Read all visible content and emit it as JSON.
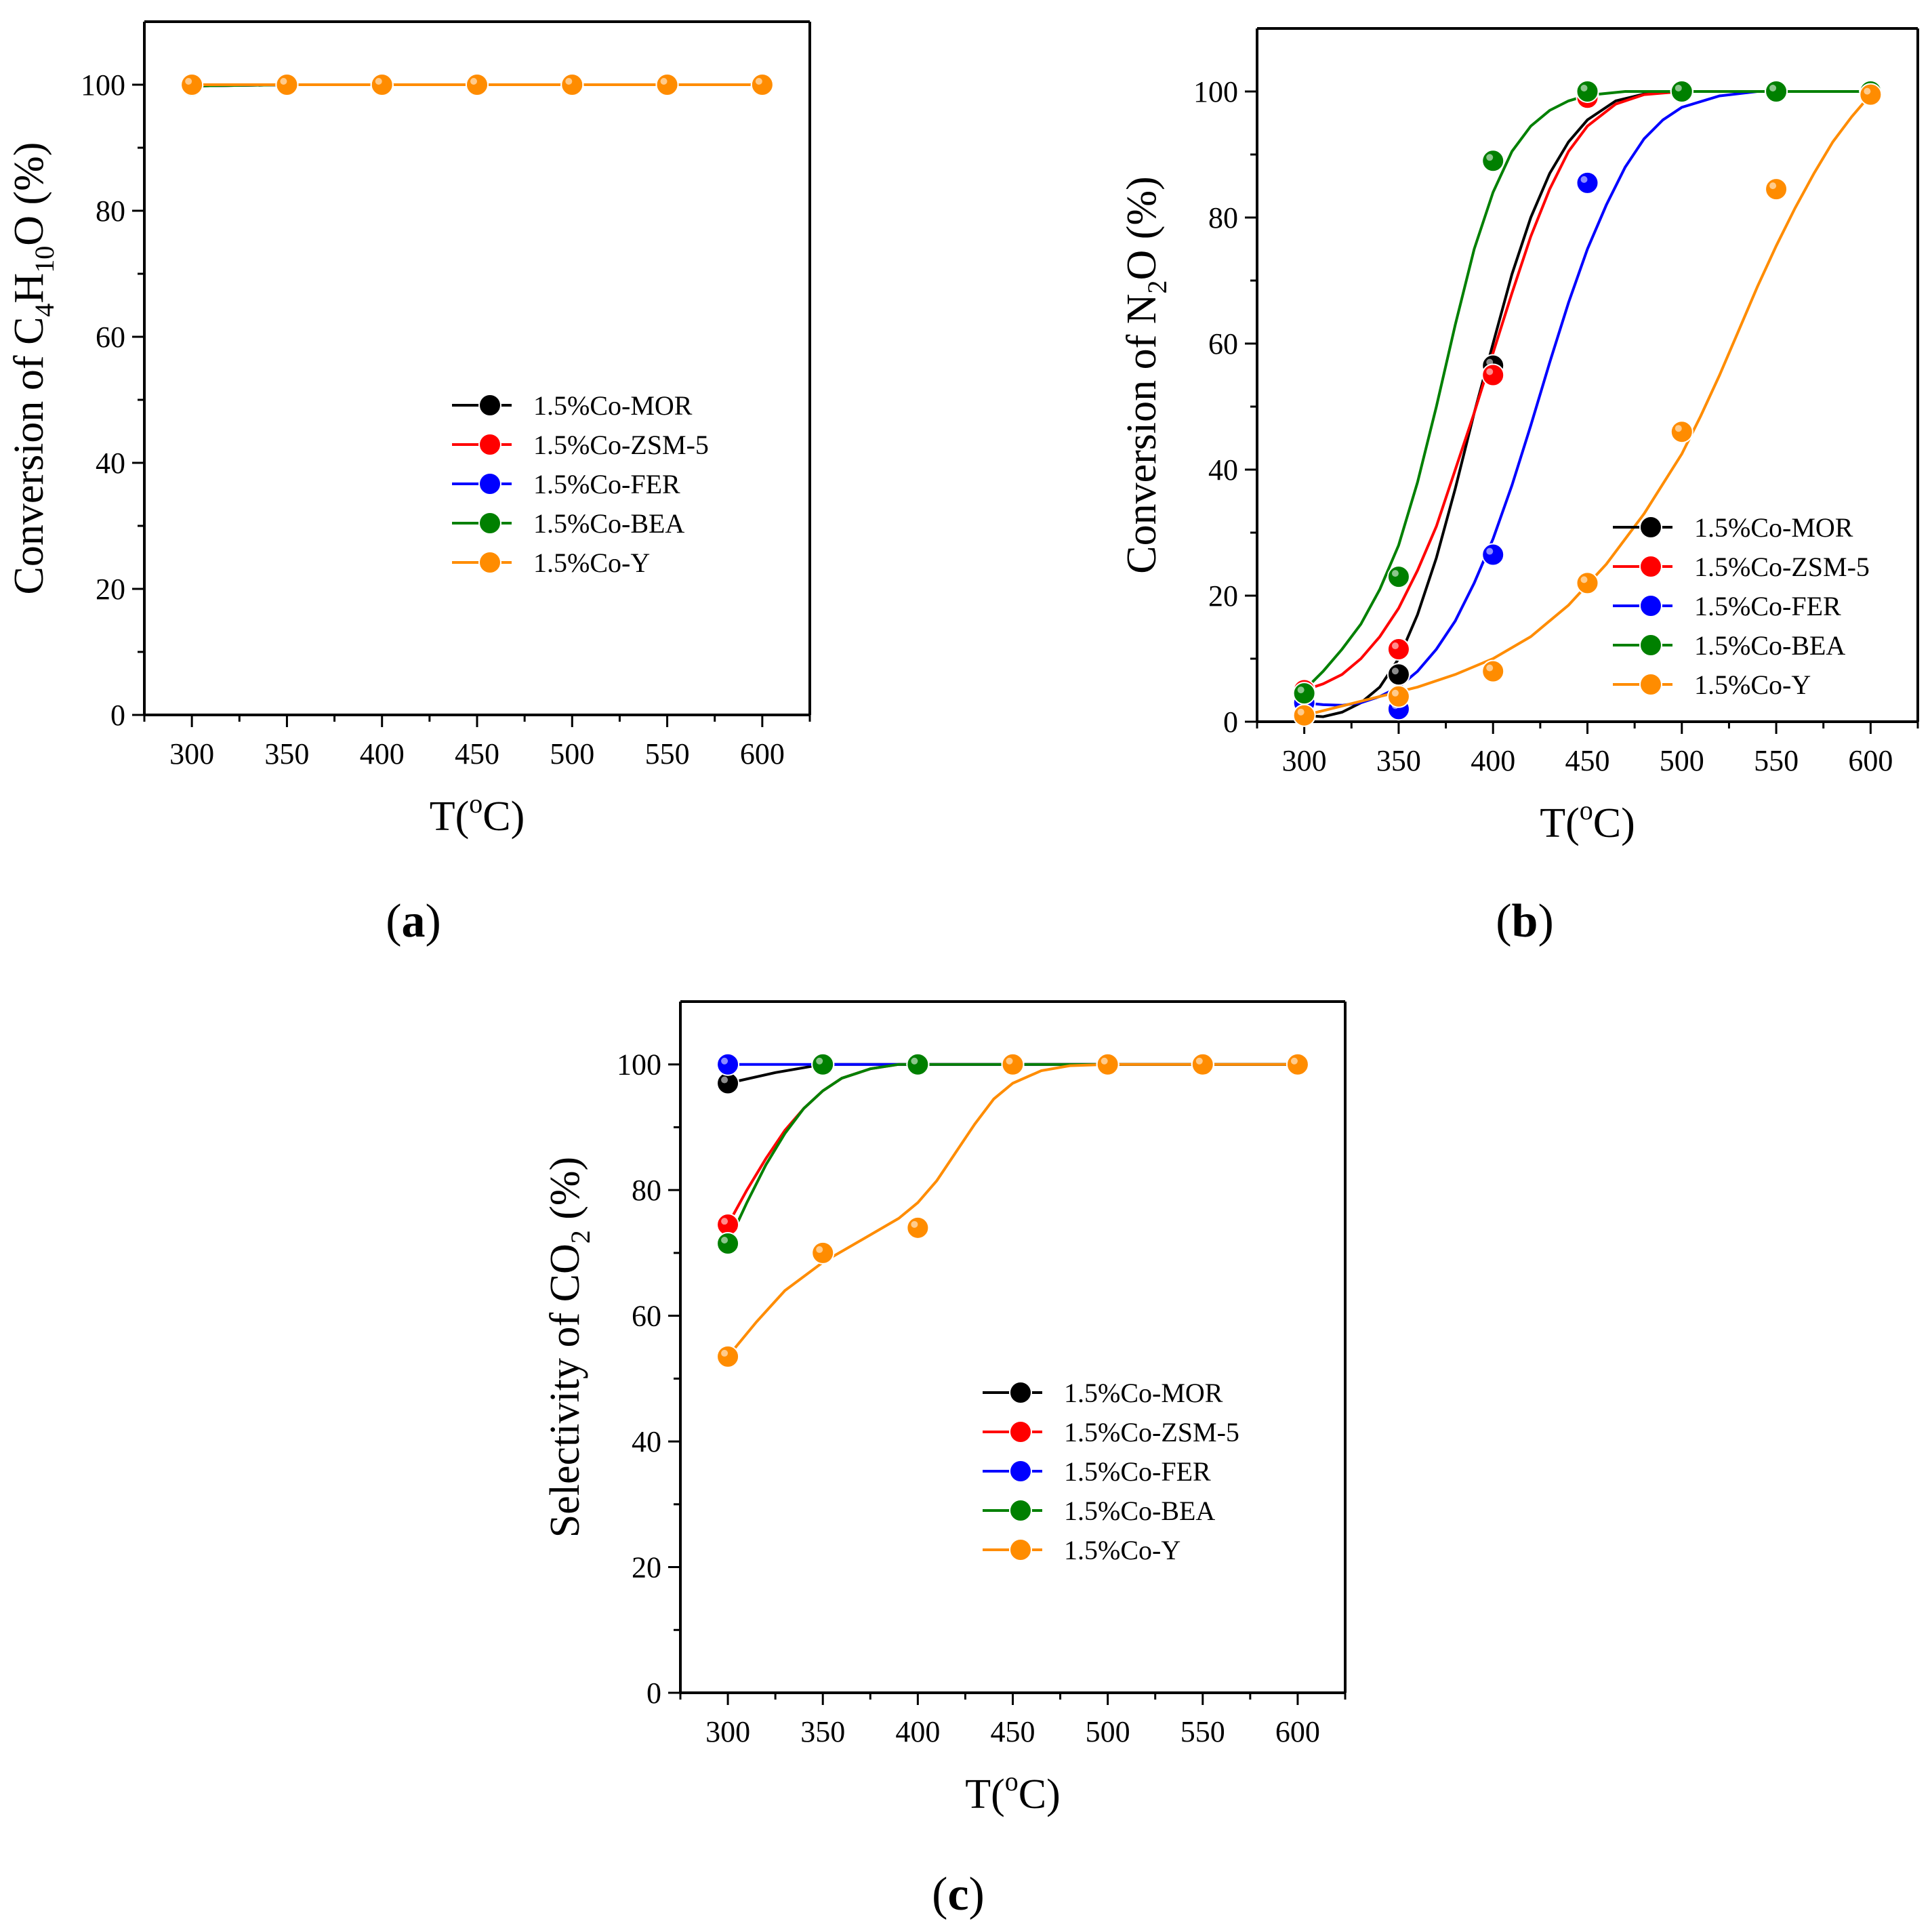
{
  "figure": {
    "panels": [
      {
        "label_open": "(",
        "label_letter": "a",
        "label_close": ")"
      },
      {
        "label_open": "(",
        "label_letter": "b",
        "label_close": ")"
      },
      {
        "label_open": "(",
        "label_letter": "c",
        "label_close": ")"
      }
    ]
  },
  "chart_data": [
    {
      "type": "line",
      "panel": "a",
      "title": "",
      "xlabel": "T(oC)",
      "ylabel": "Conversion of C4H10O (%)",
      "xlabel_parts": {
        "pre": "T(",
        "sup": "o",
        "post": "C)"
      },
      "ylabel_parts": {
        "pre": "Conversion of C",
        "sub1": "4",
        "mid": "H",
        "sub2": "10",
        "post": "O (%)"
      },
      "xlim": [
        275,
        625
      ],
      "ylim": [
        0,
        110
      ],
      "xticks": [
        300,
        350,
        400,
        450,
        500,
        550,
        600
      ],
      "yticks": [
        0,
        20,
        40,
        60,
        80,
        100
      ],
      "legend_position": "center-right",
      "x": [
        300,
        350,
        400,
        450,
        500,
        550,
        600
      ],
      "series": [
        {
          "name": "1.5%Co-MOR",
          "color": "#000000",
          "values": [
            99.8,
            100,
            100,
            100,
            100,
            100,
            100
          ]
        },
        {
          "name": "1.5%Co-ZSM-5",
          "color": "#ff0000",
          "values": [
            99.8,
            100,
            100,
            100,
            100,
            100,
            100
          ]
        },
        {
          "name": "1.5%Co-FER",
          "color": "#0000ff",
          "values": [
            99.8,
            100,
            100,
            100,
            100,
            100,
            100
          ]
        },
        {
          "name": "1.5%Co-BEA",
          "color": "#008000",
          "values": [
            99.8,
            100,
            100,
            100,
            100,
            100,
            100
          ]
        },
        {
          "name": "1.5%Co-Y",
          "color": "#ff8c00",
          "values": [
            100,
            100,
            100,
            100,
            100,
            100,
            100
          ]
        }
      ]
    },
    {
      "type": "line",
      "panel": "b",
      "title": "",
      "xlabel": "T(oC)",
      "ylabel": "Conversion of N2O (%)",
      "xlabel_parts": {
        "pre": "T(",
        "sup": "o",
        "post": "C)"
      },
      "ylabel_parts": {
        "pre": "Conversion of N",
        "sub1": "2",
        "post": "O (%)"
      },
      "xlim": [
        275,
        625
      ],
      "ylim": [
        0,
        110
      ],
      "xticks": [
        300,
        350,
        400,
        450,
        500,
        550,
        600
      ],
      "yticks": [
        0,
        20,
        40,
        60,
        80,
        100
      ],
      "legend_position": "bottom-right",
      "x": [
        300,
        350,
        400,
        450,
        500,
        550,
        600
      ],
      "series": [
        {
          "name": "1.5%Co-MOR",
          "color": "#000000",
          "values": [
            1,
            7.5,
            56.5,
            99.5,
            100,
            100,
            100
          ],
          "curve": [
            [
              300,
              1
            ],
            [
              310,
              0.8
            ],
            [
              320,
              1.5
            ],
            [
              330,
              3
            ],
            [
              340,
              5.5
            ],
            [
              350,
              10
            ],
            [
              360,
              17
            ],
            [
              370,
              26
            ],
            [
              380,
              37
            ],
            [
              390,
              49
            ],
            [
              400,
              60
            ],
            [
              410,
              71
            ],
            [
              420,
              80
            ],
            [
              430,
              87
            ],
            [
              440,
              92
            ],
            [
              450,
              95.5
            ],
            [
              465,
              98.5
            ],
            [
              480,
              99.6
            ],
            [
              500,
              100
            ],
            [
              550,
              100
            ],
            [
              600,
              100
            ]
          ]
        },
        {
          "name": "1.5%Co-ZSM-5",
          "color": "#ff0000",
          "values": [
            5,
            11.5,
            55,
            99,
            100,
            100,
            100
          ],
          "curve": [
            [
              300,
              5
            ],
            [
              310,
              6
            ],
            [
              320,
              7.5
            ],
            [
              330,
              10
            ],
            [
              340,
              13.5
            ],
            [
              350,
              18
            ],
            [
              360,
              24
            ],
            [
              370,
              31
            ],
            [
              380,
              40
            ],
            [
              390,
              49
            ],
            [
              400,
              58.5
            ],
            [
              410,
              68
            ],
            [
              420,
              77
            ],
            [
              430,
              84.5
            ],
            [
              440,
              90.5
            ],
            [
              450,
              94.5
            ],
            [
              465,
              98
            ],
            [
              480,
              99.5
            ],
            [
              500,
              100
            ],
            [
              550,
              100
            ],
            [
              600,
              100
            ]
          ]
        },
        {
          "name": "1.5%Co-FER",
          "color": "#0000ff",
          "values": [
            3,
            2,
            26.5,
            85.5,
            100,
            100,
            100
          ],
          "curve": [
            [
              300,
              3
            ],
            [
              310,
              2.7
            ],
            [
              320,
              2.6
            ],
            [
              330,
              3
            ],
            [
              340,
              4
            ],
            [
              350,
              5.5
            ],
            [
              360,
              8
            ],
            [
              370,
              11.5
            ],
            [
              380,
              16
            ],
            [
              390,
              22
            ],
            [
              400,
              29
            ],
            [
              410,
              37.5
            ],
            [
              420,
              47
            ],
            [
              430,
              57
            ],
            [
              440,
              66.5
            ],
            [
              450,
              75
            ],
            [
              460,
              82
            ],
            [
              470,
              88
            ],
            [
              480,
              92.5
            ],
            [
              490,
              95.5
            ],
            [
              500,
              97.5
            ],
            [
              520,
              99.3
            ],
            [
              540,
              100
            ],
            [
              570,
              100
            ],
            [
              600,
              100
            ]
          ]
        },
        {
          "name": "1.5%Co-BEA",
          "color": "#008000",
          "values": [
            4.5,
            23,
            89,
            100,
            100,
            100,
            100
          ],
          "curve": [
            [
              300,
              5
            ],
            [
              310,
              8
            ],
            [
              320,
              11.5
            ],
            [
              330,
              15.5
            ],
            [
              340,
              21
            ],
            [
              350,
              28
            ],
            [
              360,
              38
            ],
            [
              370,
              50
            ],
            [
              380,
              63
            ],
            [
              390,
              75
            ],
            [
              400,
              84
            ],
            [
              410,
              90.5
            ],
            [
              420,
              94.5
            ],
            [
              430,
              97
            ],
            [
              440,
              98.5
            ],
            [
              450,
              99.4
            ],
            [
              470,
              100
            ],
            [
              500,
              100
            ],
            [
              550,
              100
            ],
            [
              600,
              100
            ]
          ]
        },
        {
          "name": "1.5%Co-Y",
          "color": "#ff8c00",
          "values": [
            1,
            4,
            8,
            22,
            46,
            84.5,
            99.5
          ],
          "curve": [
            [
              300,
              1
            ],
            [
              320,
              2.5
            ],
            [
              340,
              4
            ],
            [
              360,
              5.5
            ],
            [
              380,
              7.5
            ],
            [
              400,
              10
            ],
            [
              420,
              13.5
            ],
            [
              440,
              18.5
            ],
            [
              460,
              25
            ],
            [
              480,
              33
            ],
            [
              500,
              42.5
            ],
            [
              510,
              48.5
            ],
            [
              520,
              55
            ],
            [
              530,
              62
            ],
            [
              540,
              69
            ],
            [
              550,
              75.5
            ],
            [
              560,
              81.5
            ],
            [
              570,
              87
            ],
            [
              580,
              92
            ],
            [
              590,
              96
            ],
            [
              600,
              99.5
            ]
          ]
        }
      ]
    },
    {
      "type": "line",
      "panel": "c",
      "title": "",
      "xlabel": "T(oC)",
      "ylabel": "Selectivity of CO2 (%)",
      "xlabel_parts": {
        "pre": "T(",
        "sup": "o",
        "post": "C)"
      },
      "ylabel_parts": {
        "pre": "Selectivity of CO",
        "sub1": "2",
        "post": " (%)"
      },
      "xlim": [
        275,
        625
      ],
      "ylim": [
        0,
        110
      ],
      "xticks": [
        300,
        350,
        400,
        450,
        500,
        550,
        600
      ],
      "yticks": [
        0,
        20,
        40,
        60,
        80,
        100
      ],
      "legend_position": "bottom-right",
      "x": [
        300,
        350,
        400,
        450,
        500,
        550,
        600
      ],
      "series": [
        {
          "name": "1.5%Co-MOR",
          "color": "#000000",
          "values": [
            97,
            100,
            100,
            100,
            100,
            100,
            100
          ],
          "curve": [
            [
              300,
              97
            ],
            [
              325,
              98.7
            ],
            [
              350,
              100
            ],
            [
              400,
              100
            ],
            [
              600,
              100
            ]
          ]
        },
        {
          "name": "1.5%Co-ZSM-5",
          "color": "#ff0000",
          "values": [
            74.5,
            100,
            100,
            100,
            100,
            100,
            100
          ],
          "curve": [
            [
              300,
              74.5
            ],
            [
              310,
              80
            ],
            [
              320,
              85
            ],
            [
              330,
              89.5
            ],
            [
              340,
              93
            ],
            [
              350,
              95.8
            ],
            [
              360,
              97.8
            ],
            [
              375,
              99.3
            ],
            [
              390,
              100
            ],
            [
              600,
              100
            ]
          ]
        },
        {
          "name": "1.5%Co-FER",
          "color": "#0000ff",
          "values": [
            100,
            100,
            100,
            100,
            100,
            100,
            100
          ],
          "curve": [
            [
              300,
              100
            ],
            [
              600,
              100
            ]
          ]
        },
        {
          "name": "1.5%Co-BEA",
          "color": "#008000",
          "values": [
            71.5,
            100,
            100,
            100,
            100,
            100,
            100
          ],
          "curve": [
            [
              300,
              71.5
            ],
            [
              310,
              78
            ],
            [
              320,
              84
            ],
            [
              330,
              89
            ],
            [
              340,
              93
            ],
            [
              350,
              95.8
            ],
            [
              360,
              97.8
            ],
            [
              375,
              99.3
            ],
            [
              390,
              100
            ],
            [
              600,
              100
            ]
          ]
        },
        {
          "name": "1.5%Co-Y",
          "color": "#ff8c00",
          "values": [
            53.5,
            70,
            74,
            100,
            100,
            100,
            100
          ],
          "curve": [
            [
              300,
              53.5
            ],
            [
              315,
              59
            ],
            [
              330,
              64
            ],
            [
              350,
              68.5
            ],
            [
              370,
              72
            ],
            [
              390,
              75.5
            ],
            [
              400,
              78
            ],
            [
              410,
              81.5
            ],
            [
              420,
              86
            ],
            [
              430,
              90.5
            ],
            [
              440,
              94.5
            ],
            [
              450,
              97
            ],
            [
              465,
              99
            ],
            [
              480,
              99.8
            ],
            [
              500,
              100
            ],
            [
              600,
              100
            ]
          ]
        }
      ]
    }
  ]
}
